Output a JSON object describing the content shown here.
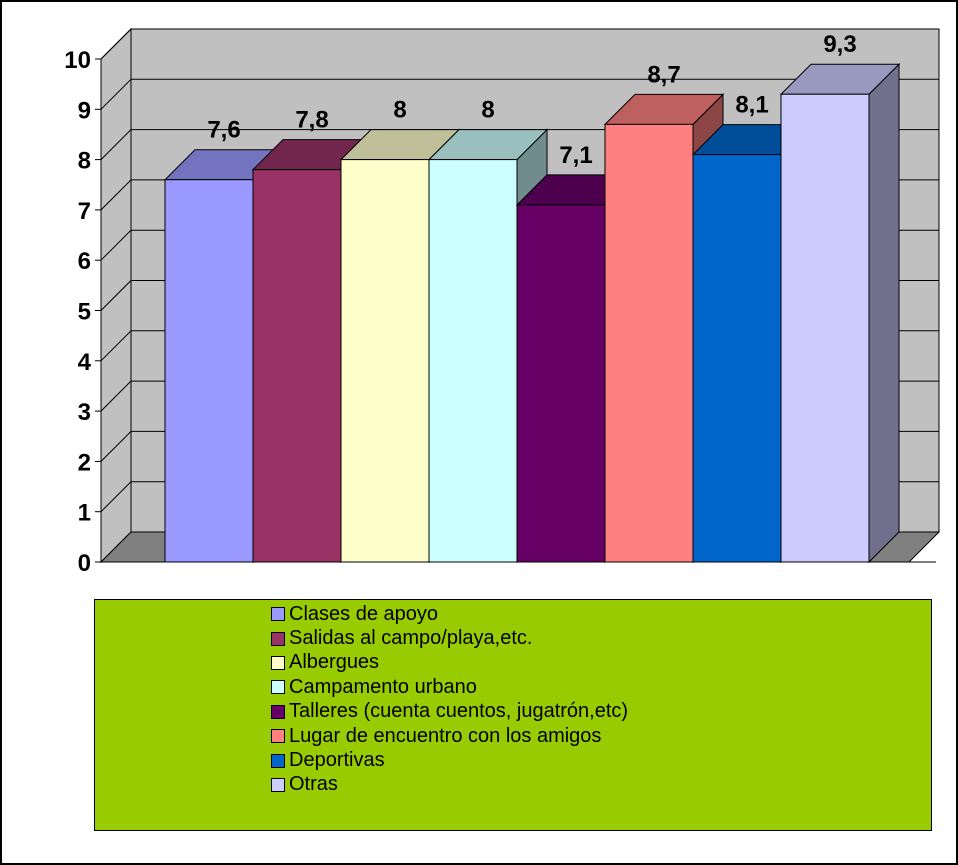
{
  "chart_data": {
    "type": "bar",
    "categories": [
      "Clases de apoyo",
      "Salidas al campo/playa,etc.",
      "Albergues",
      "Campamento urbano",
      "Talleres (cuenta cuentos, jugatrón,etc)",
      "Lugar de encuentro con los amigos",
      "Deportivas",
      "Otras"
    ],
    "values": [
      7.6,
      7.8,
      8,
      8,
      7.1,
      8.7,
      8.1,
      9.3
    ],
    "data_labels": [
      "7,6",
      "7,8",
      "8",
      "8",
      "7,1",
      "8,7",
      "8,1",
      "9,3"
    ],
    "colors": [
      "#9999ff",
      "#993366",
      "#ffffcc",
      "#ccffff",
      "#660066",
      "#ff8080",
      "#0066cc",
      "#ccccff"
    ],
    "ylim": [
      0,
      10
    ],
    "yticks": [
      "0",
      "1",
      "2",
      "3",
      "4",
      "5",
      "6",
      "7",
      "8",
      "9",
      "10"
    ],
    "grid": true,
    "wall_color": "#c0c0c0",
    "legend_background": "#99cc00",
    "legend_position": "bottom"
  }
}
